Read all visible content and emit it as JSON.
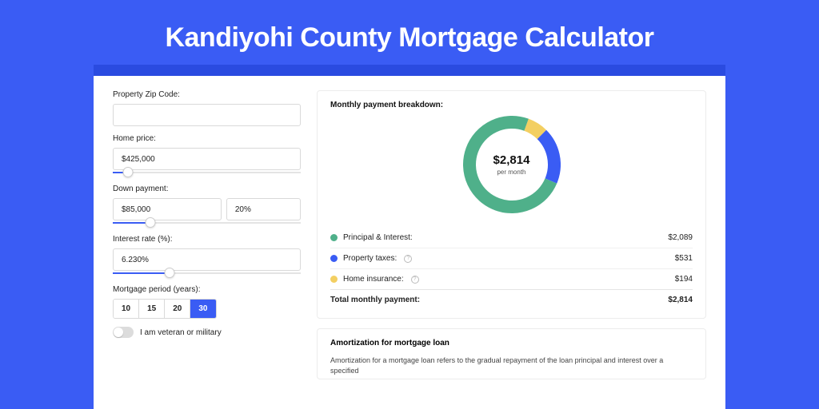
{
  "page": {
    "title": "Kandiyohi County Mortgage Calculator",
    "bg_color": "#3a5cf4",
    "panel_outer_color": "#2a4be0"
  },
  "form": {
    "zip": {
      "label": "Property Zip Code:",
      "value": ""
    },
    "home_price": {
      "label": "Home price:",
      "value": "$425,000",
      "slider_pct": 8
    },
    "down_payment": {
      "label": "Down payment:",
      "amount": "$85,000",
      "percent": "20%",
      "slider_pct": 20
    },
    "interest_rate": {
      "label": "Interest rate (%):",
      "value": "6.230%",
      "slider_pct": 30
    },
    "period": {
      "label": "Mortgage period (years):",
      "options": [
        "10",
        "15",
        "20",
        "30"
      ],
      "selected_index": 3
    },
    "veteran": {
      "label": "I am veteran or military",
      "checked": false
    }
  },
  "breakdown": {
    "title": "Monthly payment breakdown:",
    "total_display": "$2,814",
    "per_month_label": "per month",
    "items": [
      {
        "label": "Principal & Interest:",
        "value": "$2,089",
        "amount": 2089,
        "color": "#4fb08a",
        "info": false
      },
      {
        "label": "Property taxes:",
        "value": "$531",
        "amount": 531,
        "color": "#3a5cf4",
        "info": true
      },
      {
        "label": "Home insurance:",
        "value": "$194",
        "amount": 194,
        "color": "#f3cf62",
        "info": true
      }
    ],
    "total_row": {
      "label": "Total monthly payment:",
      "value": "$2,814"
    },
    "donut": {
      "stroke_width": 16,
      "bg_color": "#ffffff"
    }
  },
  "amortization": {
    "title": "Amortization for mortgage loan",
    "body": "Amortization for a mortgage loan refers to the gradual repayment of the loan principal and interest over a specified"
  }
}
